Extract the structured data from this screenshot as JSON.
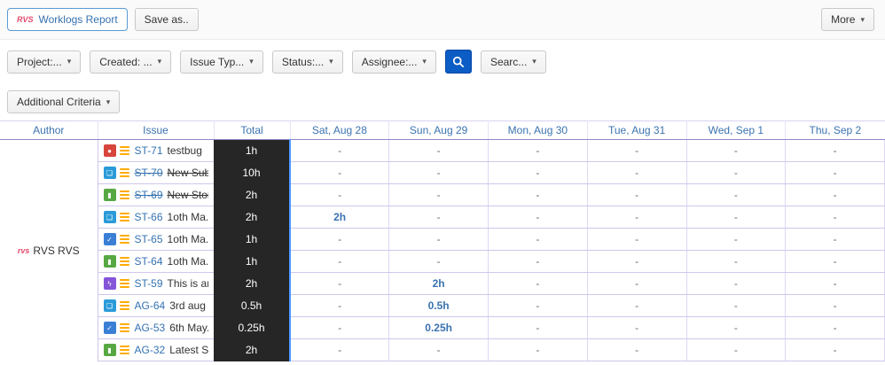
{
  "toolbar": {
    "logo_text": "RVS",
    "app_title": "Worklogs Report",
    "save_as_label": "Save as..",
    "more_label": "More"
  },
  "filter_bar": {
    "filters": [
      {
        "id": "project",
        "label": "Project:..."
      },
      {
        "id": "created",
        "label": "Created: ..."
      },
      {
        "id": "issue-type",
        "label": "Issue Typ..."
      },
      {
        "id": "status",
        "label": "Status:..."
      },
      {
        "id": "assignee",
        "label": "Assignee:..."
      }
    ],
    "search_dropdown_label": "Searc..."
  },
  "additional_criteria": {
    "label": "Additional Criteria"
  },
  "table": {
    "columns": [
      "Author",
      "Issue",
      "Total",
      "Sat, Aug 28",
      "Sun, Aug 29",
      "Mon, Aug 30",
      "Tue, Aug 31",
      "Wed, Sep 1",
      "Thu, Sep 2"
    ],
    "author": {
      "name": "RVS RVS",
      "avatar_text": "rvs"
    },
    "type_styles": {
      "bug": {
        "color": "#d8453c",
        "glyph": "●"
      },
      "subtask": {
        "color": "#2a9bd8",
        "glyph": "❏"
      },
      "story": {
        "color": "#57a843",
        "glyph": "▮"
      },
      "task": {
        "color": "#3a7fd5",
        "glyph": "✓"
      },
      "epic": {
        "color": "#8455d9",
        "glyph": "ϟ"
      }
    },
    "rows": [
      {
        "type": "bug",
        "key": "ST-71",
        "summary": "testbug",
        "resolved": false,
        "total": "1h",
        "days": [
          "-",
          "-",
          "-",
          "-",
          "-",
          "-"
        ]
      },
      {
        "type": "subtask",
        "key": "ST-70",
        "summary": "New Sub...",
        "resolved": true,
        "total": "10h",
        "days": [
          "-",
          "-",
          "-",
          "-",
          "-",
          "-"
        ]
      },
      {
        "type": "story",
        "key": "ST-69",
        "summary": "New Story",
        "resolved": true,
        "total": "2h",
        "days": [
          "-",
          "-",
          "-",
          "-",
          "-",
          "-"
        ]
      },
      {
        "type": "subtask",
        "key": "ST-66",
        "summary": "1oth Ma...",
        "resolved": false,
        "total": "2h",
        "days": [
          "2h",
          "-",
          "-",
          "-",
          "-",
          "-"
        ]
      },
      {
        "type": "task",
        "key": "ST-65",
        "summary": "1oth Ma...",
        "resolved": false,
        "total": "1h",
        "days": [
          "-",
          "-",
          "-",
          "-",
          "-",
          "-"
        ]
      },
      {
        "type": "story",
        "key": "ST-64",
        "summary": "1oth Ma...",
        "resolved": false,
        "total": "1h",
        "days": [
          "-",
          "-",
          "-",
          "-",
          "-",
          "-"
        ]
      },
      {
        "type": "epic",
        "key": "ST-59",
        "summary": "This is an...",
        "resolved": false,
        "total": "2h",
        "days": [
          "-",
          "2h",
          "-",
          "-",
          "-",
          "-"
        ]
      },
      {
        "type": "subtask",
        "key": "AG-64",
        "summary": "3rd aug ...",
        "resolved": false,
        "total": "0.5h",
        "days": [
          "-",
          "0.5h",
          "-",
          "-",
          "-",
          "-"
        ]
      },
      {
        "type": "task",
        "key": "AG-53",
        "summary": "6th May...",
        "resolved": false,
        "total": "0.25h",
        "days": [
          "-",
          "0.25h",
          "-",
          "-",
          "-",
          "-"
        ]
      },
      {
        "type": "story",
        "key": "AG-32",
        "summary": "Latest St...",
        "resolved": false,
        "total": "2h",
        "days": [
          "-",
          "-",
          "-",
          "-",
          "-",
          "-"
        ]
      }
    ],
    "colors": {
      "header_text": "#3b73af",
      "value_text": "#3b73af",
      "total_bg": "#262626",
      "total_border": "#4c9aff",
      "priority_orange": "#ffab00"
    }
  }
}
